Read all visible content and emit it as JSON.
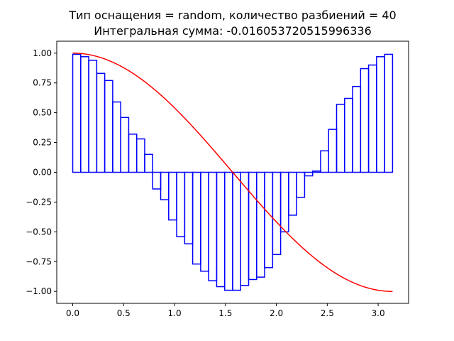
{
  "chart_data": {
    "type": "bar",
    "title": "Тип оснащения = random, количество разбиений = 40",
    "subtitle": "Интегральная сумма: -0.016053720515996336",
    "xlabel": "",
    "ylabel": "",
    "xlim": [
      -0.157,
      3.299
    ],
    "ylim": [
      -1.1,
      1.1
    ],
    "xticks": [
      0.0,
      0.5,
      1.0,
      1.5,
      2.0,
      2.5,
      3.0
    ],
    "yticks": [
      -1.0,
      -0.75,
      -0.5,
      -0.25,
      0.0,
      0.25,
      0.5,
      0.75,
      1.0
    ],
    "xtick_labels": [
      "0.0",
      "0.5",
      "1.0",
      "1.5",
      "2.0",
      "2.5",
      "3.0"
    ],
    "ytick_labels": [
      "−1.00",
      "−0.75",
      "−0.50",
      "−0.25",
      "0.00",
      "0.25",
      "0.50",
      "0.75",
      "1.00"
    ],
    "grid": false,
    "x_start": 0,
    "x_end": 3.14159,
    "partitions": 40,
    "bar_values": [
      0.99,
      0.97,
      0.94,
      0.83,
      0.77,
      0.59,
      0.46,
      0.32,
      0.28,
      0.15,
      -0.14,
      -0.23,
      -0.4,
      -0.54,
      -0.6,
      -0.77,
      -0.83,
      -0.91,
      -0.96,
      -0.99,
      -0.99,
      -0.95,
      -0.9,
      -0.88,
      -0.8,
      -0.69,
      -0.5,
      -0.36,
      -0.21,
      -0.03,
      0.01,
      0.18,
      0.36,
      0.57,
      0.62,
      0.72,
      0.87,
      0.9,
      0.97,
      0.99
    ],
    "curve": {
      "function": "cos(x)",
      "x_range": [
        0,
        3.14159
      ]
    },
    "colors": {
      "bars": "#0000ff",
      "curve": "#ff0000",
      "axes": "#000000"
    }
  }
}
